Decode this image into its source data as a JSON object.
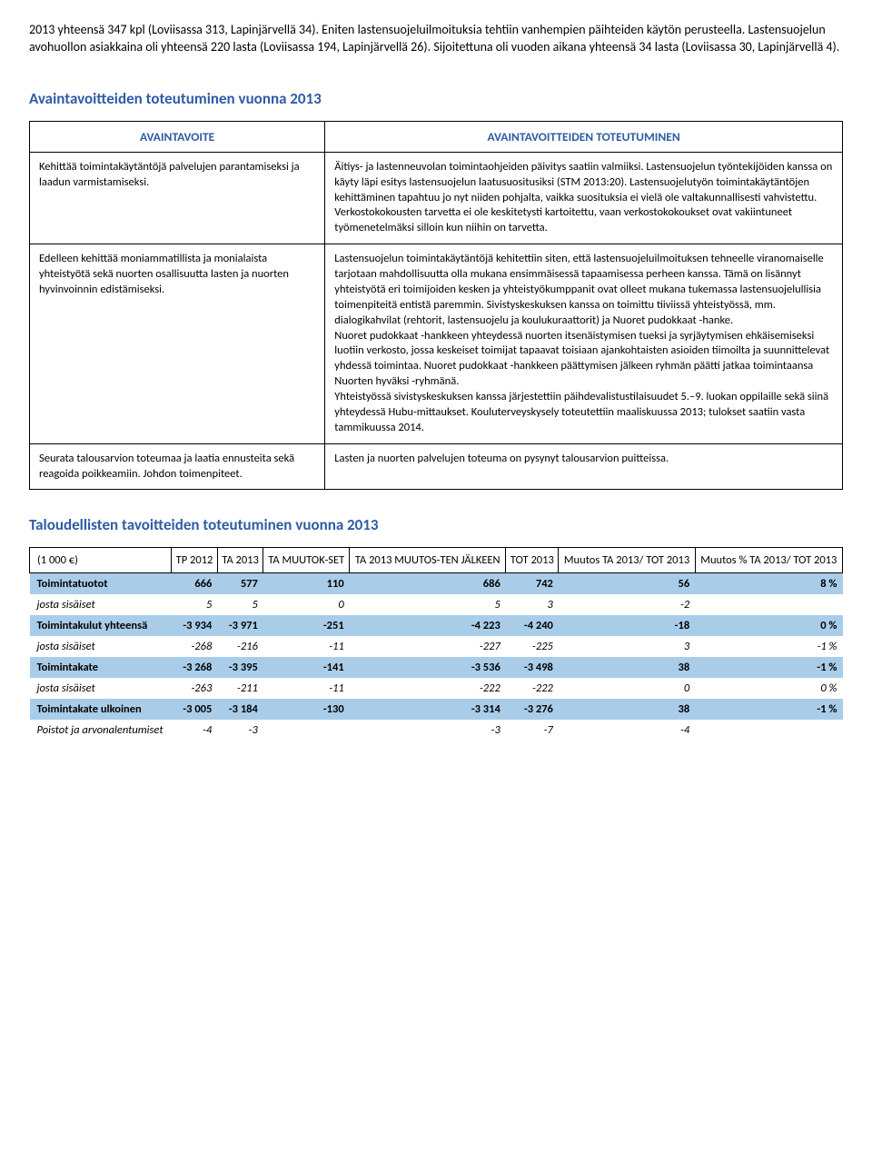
{
  "intro_text": "2013 yhteensä 347 kpl (Loviisassa 313, Lapinjärvellä 34). Eniten lastensuojeluilmoituksia tehtiin vanhempien päihteiden käytön perusteella. Lastensuojelun avohuollon asiakkaina oli yhteensä 220 lasta (Loviisassa 194, Lapinjärvellä 26). Sijoitettuna oli vuoden aikana yhteensä 34 lasta (Loviisassa 30, Lapinjärvellä 4).",
  "goals": {
    "heading": "Avaintavoitteiden toteutuminen vuonna 2013",
    "col1": "AVAINTAVOITE",
    "col2": "AVAINTAVOITTEIDEN TOTEUTUMINEN",
    "rows": [
      {
        "a": "Kehittää toimintakäytäntöjä palvelujen parantamiseksi ja laadun varmistamiseksi.",
        "b": "Äitiys- ja lastenneuvolan toimintaohjeiden päivitys saatiin valmiiksi. Lastensuojelun työntekijöiden kanssa on käyty läpi esitys lastensuojelun laatusuositusiksi (STM 2013:20). Lastensuojelutyön toimintakäytäntöjen kehittäminen tapahtuu jo nyt niiden pohjalta, vaikka suosituksia ei vielä ole valtakunnallisesti vahvistettu.\nVerkostokokousten tarvetta ei ole keskitetysti kartoitettu, vaan verkostokokoukset ovat vakiintuneet työmenetelmäksi silloin kun niihin on tarvetta."
      },
      {
        "a": "Edelleen kehittää moniammatillista ja monialaista yhteistyötä sekä nuorten osallisuutta lasten ja nuorten hyvinvoinnin edistämiseksi.",
        "b": "Lastensuojelun toimintakäytäntöjä kehitettiin siten, että lastensuojeluilmoituksen tehneelle viranomaiselle tarjotaan mahdollisuutta olla mukana ensimmäisessä tapaamisessa perheen kanssa. Tämä on lisännyt yhteistyötä eri toimijoiden kesken ja yhteistyökumppanit ovat olleet mukana tukemassa lastensuojelullisia toimenpiteitä entistä paremmin. Sivistyskeskuksen kanssa on toimittu tiiviissä yhteistyössä, mm. dialogikahvilat (rehtorit, lastensuojelu ja koulukuraattorit) ja Nuoret pudokkaat -hanke.\nNuoret pudokkaat -hankkeen yhteydessä nuorten itsenäistymisen tueksi ja syrjäytymisen ehkäisemiseksi luotiin verkosto, jossa keskeiset toimijat tapaavat toisiaan ajankohtaisten asioiden tiimoilta ja suunnittelevat yhdessä toimintaa. Nuoret pudokkaat -hankkeen päättymisen jälkeen ryhmän päätti jatkaa toimintaansa Nuorten hyväksi -ryhmänä.\nYhteistyössä sivistyskeskuksen kanssa järjestettiin päihdevalistustilaisuudet 5.–9. luokan oppilaille sekä siinä yhteydessä Hubu-mittaukset. Kouluterveyskysely toteutettiin maaliskuussa 2013; tulokset saatiin vasta tammikuussa 2014."
      },
      {
        "a": "Seurata talousarvion toteumaa ja laatia ennusteita sekä reagoida poikkeamiin. Johdon toimenpiteet.",
        "b": "Lasten ja nuorten palvelujen toteuma on pysynyt talousarvion puitteissa."
      }
    ]
  },
  "fin": {
    "heading": "Taloudellisten tavoitteiden toteutuminen vuonna 2013",
    "unit_label": "(1 000 €)",
    "headers": [
      "TP 2012",
      "TA 2013",
      "TA MUUTOK-SET",
      "TA 2013 MUUTOS-TEN JÄLKEEN",
      "TOT 2013",
      "Muutos TA 2013/ TOT 2013",
      "Muutos % TA 2013/ TOT 2013"
    ],
    "rows": [
      {
        "band": true,
        "label": "Toimintatuotot",
        "v": [
          "666",
          "577",
          "110",
          "686",
          "742",
          "56",
          "8 %"
        ]
      },
      {
        "band": false,
        "label": "josta sisäiset",
        "v": [
          "5",
          "5",
          "0",
          "5",
          "3",
          "-2",
          ""
        ]
      },
      {
        "band": true,
        "label": "Toimintakulut yhteensä",
        "v": [
          "-3 934",
          "-3 971",
          "-251",
          "-4 223",
          "-4 240",
          "-18",
          "0 %"
        ]
      },
      {
        "band": false,
        "label": "josta sisäiset",
        "v": [
          "-268",
          "-216",
          "-11",
          "-227",
          "-225",
          "3",
          "-1 %"
        ]
      },
      {
        "band": true,
        "label": "Toimintakate",
        "v": [
          "-3 268",
          "-3 395",
          "-141",
          "-3 536",
          "-3 498",
          "38",
          "-1 %"
        ]
      },
      {
        "band": false,
        "label": "josta sisäiset",
        "v": [
          "-263",
          "-211",
          "-11",
          "-222",
          "-222",
          "0",
          "0 %"
        ]
      },
      {
        "band": true,
        "label": "Toimintakate ulkoinen",
        "v": [
          "-3 005",
          "-3 184",
          "-130",
          "-3 314",
          "-3 276",
          "38",
          "-1 %"
        ]
      },
      {
        "band": false,
        "label": "Poistot ja arvonalentumiset",
        "v": [
          "-4",
          "-3",
          "",
          "-3",
          "-7",
          "-4",
          ""
        ]
      }
    ]
  }
}
